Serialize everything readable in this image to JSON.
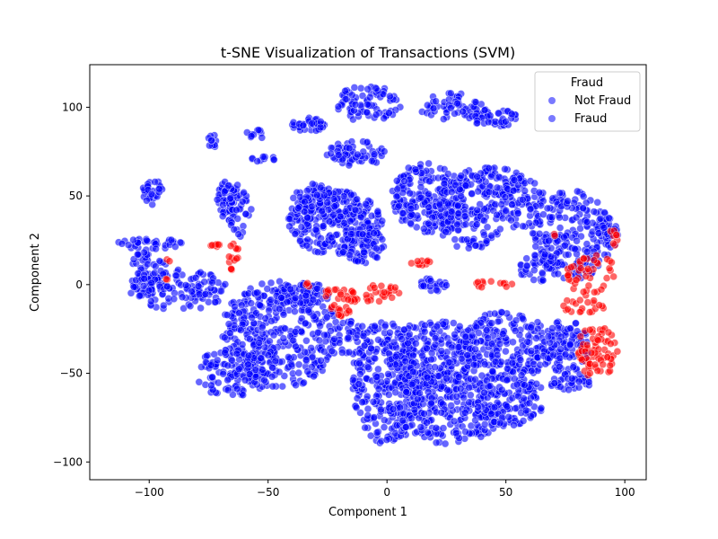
{
  "chart_data": {
    "type": "scatter",
    "title": "t-SNE Visualization of Transactions (SVM)",
    "xlabel": "Component 1",
    "ylabel": "Component 2",
    "xlim": [
      -125,
      109
    ],
    "ylim": [
      -110,
      124
    ],
    "xticks": [
      -100,
      -50,
      0,
      50,
      100
    ],
    "yticks": [
      -100,
      -50,
      0,
      50,
      100
    ],
    "xtick_labels": [
      "−100",
      "−50",
      "0",
      "50",
      "100"
    ],
    "ytick_labels": [
      "−100",
      "−50",
      "0",
      "50",
      "100"
    ],
    "grid": false,
    "legend": {
      "title": "Fraud",
      "placement": "top-right",
      "entries": [
        "Not Fraud",
        "Fraud"
      ],
      "marker_color": "#4c4cff"
    },
    "colors": {
      "not_fraud": "#0000ff",
      "fraud": "#ff0000"
    },
    "not_fraud_clusters": [
      {
        "cx": -100,
        "cy": 7,
        "rx": 8,
        "ry": 14,
        "n": 70
      },
      {
        "cx": -88,
        "cy": -3,
        "rx": 20,
        "ry": 12,
        "n": 90
      },
      {
        "cx": -76,
        "cy": -1,
        "rx": 9,
        "ry": 7,
        "n": 25
      },
      {
        "cx": -100,
        "cy": 23,
        "rx": 14,
        "ry": 3,
        "n": 35
      },
      {
        "cx": -98,
        "cy": 52,
        "rx": 5,
        "ry": 7,
        "n": 30
      },
      {
        "cx": -67,
        "cy": 47,
        "rx": 5,
        "ry": 11,
        "n": 45
      },
      {
        "cx": -62,
        "cy": 40,
        "rx": 5,
        "ry": 14,
        "n": 35
      },
      {
        "cx": -67,
        "cy": 55,
        "rx": 5,
        "ry": 3,
        "n": 12
      },
      {
        "cx": -73,
        "cy": 81,
        "rx": 3,
        "ry": 4,
        "n": 10
      },
      {
        "cx": -55,
        "cy": 85,
        "rx": 4,
        "ry": 3,
        "n": 10
      },
      {
        "cx": -52,
        "cy": 71,
        "rx": 5,
        "ry": 2,
        "n": 10
      },
      {
        "cx": -22,
        "cy": 35,
        "rx": 20,
        "ry": 18,
        "n": 280
      },
      {
        "cx": -30,
        "cy": 47,
        "rx": 10,
        "ry": 10,
        "n": 60
      },
      {
        "cx": -10,
        "cy": 22,
        "rx": 10,
        "ry": 10,
        "n": 70
      },
      {
        "cx": -33,
        "cy": 90,
        "rx": 7,
        "ry": 4,
        "n": 35
      },
      {
        "cx": -8,
        "cy": 102,
        "rx": 14,
        "ry": 10,
        "n": 80
      },
      {
        "cx": -13,
        "cy": 74,
        "rx": 13,
        "ry": 7,
        "n": 60
      },
      {
        "cx": 17,
        "cy": 49,
        "rx": 15,
        "ry": 20,
        "n": 200
      },
      {
        "cx": 35,
        "cy": 40,
        "rx": 15,
        "ry": 20,
        "n": 150
      },
      {
        "cx": 43,
        "cy": 58,
        "rx": 15,
        "ry": 8,
        "n": 80
      },
      {
        "cx": 57,
        "cy": 45,
        "rx": 10,
        "ry": 15,
        "n": 70
      },
      {
        "cx": 28,
        "cy": 100,
        "rx": 14,
        "ry": 8,
        "n": 60
      },
      {
        "cx": 45,
        "cy": 94,
        "rx": 10,
        "ry": 5,
        "n": 45
      },
      {
        "cx": 78,
        "cy": 28,
        "rx": 17,
        "ry": 25,
        "n": 210
      },
      {
        "cx": 93,
        "cy": 30,
        "rx": 5,
        "ry": 10,
        "n": 25
      },
      {
        "cx": 65,
        "cy": 10,
        "rx": 10,
        "ry": 8,
        "n": 50
      },
      {
        "cx": 20,
        "cy": 0,
        "rx": 6,
        "ry": 4,
        "n": 25
      },
      {
        "cx": -45,
        "cy": -28,
        "rx": 25,
        "ry": 30,
        "n": 380
      },
      {
        "cx": -65,
        "cy": -50,
        "rx": 15,
        "ry": 15,
        "n": 120
      },
      {
        "cx": -35,
        "cy": -5,
        "rx": 12,
        "ry": 6,
        "n": 70
      },
      {
        "cx": -15,
        "cy": -30,
        "rx": 8,
        "ry": 10,
        "n": 40
      },
      {
        "cx": 0,
        "cy": -55,
        "rx": 15,
        "ry": 35,
        "n": 260
      },
      {
        "cx": 20,
        "cy": -40,
        "rx": 20,
        "ry": 20,
        "n": 230
      },
      {
        "cx": 25,
        "cy": -70,
        "rx": 25,
        "ry": 20,
        "n": 260
      },
      {
        "cx": 50,
        "cy": -35,
        "rx": 20,
        "ry": 20,
        "n": 220
      },
      {
        "cx": 52,
        "cy": -65,
        "rx": 15,
        "ry": 15,
        "n": 120
      },
      {
        "cx": 75,
        "cy": -35,
        "rx": 10,
        "ry": 15,
        "n": 100
      },
      {
        "cx": 78,
        "cy": -55,
        "rx": 10,
        "ry": 5,
        "n": 35
      }
    ],
    "fraud_clusters": [
      {
        "cx": -73,
        "cy": 22,
        "rx": 3,
        "ry": 1,
        "n": 8
      },
      {
        "cx": -65,
        "cy": 16,
        "rx": 3,
        "ry": 8,
        "n": 14
      },
      {
        "cx": -92,
        "cy": 14,
        "rx": 1,
        "ry": 1,
        "n": 2
      },
      {
        "cx": -93,
        "cy": 3,
        "rx": 1,
        "ry": 1,
        "n": 2
      },
      {
        "cx": -10,
        "cy": -5,
        "rx": 18,
        "ry": 5,
        "n": 50
      },
      {
        "cx": -20,
        "cy": -15,
        "rx": 5,
        "ry": 4,
        "n": 14
      },
      {
        "cx": -33,
        "cy": 0,
        "rx": 2,
        "ry": 2,
        "n": 3
      },
      {
        "cx": 13,
        "cy": 13,
        "rx": 5,
        "ry": 3,
        "n": 10
      },
      {
        "cx": 43,
        "cy": 0,
        "rx": 10,
        "ry": 2,
        "n": 12
      },
      {
        "cx": 86,
        "cy": 5,
        "rx": 11,
        "ry": 12,
        "n": 45
      },
      {
        "cx": 82,
        "cy": -12,
        "rx": 10,
        "ry": 4,
        "n": 20
      },
      {
        "cx": 88,
        "cy": -38,
        "rx": 9,
        "ry": 15,
        "n": 70
      },
      {
        "cx": 72,
        "cy": 28,
        "rx": 2,
        "ry": 2,
        "n": 2
      },
      {
        "cx": 95,
        "cy": 27,
        "rx": 2,
        "ry": 6,
        "n": 8
      }
    ]
  }
}
